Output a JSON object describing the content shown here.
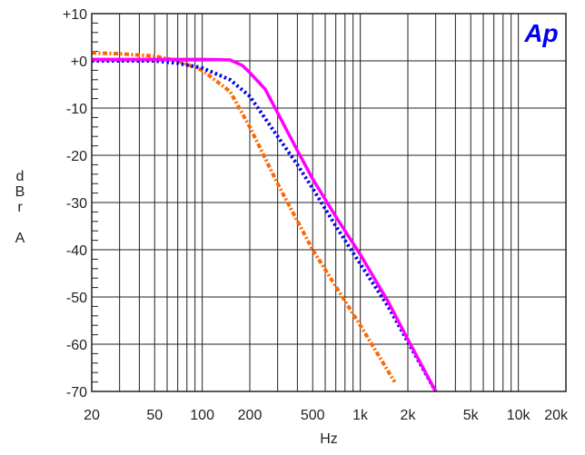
{
  "chart_data": {
    "type": "line",
    "title": "",
    "logo": "Ap",
    "xlabel": "Hz",
    "ylabel": [
      "d",
      "B",
      "r",
      "",
      "A"
    ],
    "xscale": "log",
    "xlim": [
      20,
      20000
    ],
    "ylim": [
      -70,
      10
    ],
    "grid": true,
    "x_ticks": [
      {
        "value": 20,
        "label": "20"
      },
      {
        "value": 50,
        "label": "50"
      },
      {
        "value": 100,
        "label": "100"
      },
      {
        "value": 200,
        "label": "200"
      },
      {
        "value": 500,
        "label": "500"
      },
      {
        "value": 1000,
        "label": "1k"
      },
      {
        "value": 2000,
        "label": "2k"
      },
      {
        "value": 5000,
        "label": "5k"
      },
      {
        "value": 10000,
        "label": "10k"
      },
      {
        "value": 20000,
        "label": "20k"
      }
    ],
    "y_ticks": [
      {
        "value": 10,
        "label": "+10"
      },
      {
        "value": 0,
        "label": "+0"
      },
      {
        "value": -10,
        "label": "-10"
      },
      {
        "value": -20,
        "label": "-20"
      },
      {
        "value": -30,
        "label": "-30"
      },
      {
        "value": -40,
        "label": "-40"
      },
      {
        "value": -50,
        "label": "-50"
      },
      {
        "value": -60,
        "label": "-60"
      },
      {
        "value": -70,
        "label": "-70"
      }
    ],
    "series": [
      {
        "name": "orange",
        "color": "#ff6600",
        "style": "dashdot",
        "x": [
          20,
          30,
          50,
          70,
          100,
          150,
          200,
          300,
          500,
          1000,
          1650
        ],
        "y": [
          1.7,
          1.5,
          1.0,
          0,
          -2,
          -6.5,
          -14,
          -26,
          -40,
          -56,
          -68
        ]
      },
      {
        "name": "blue",
        "color": "#0000ee",
        "style": "dotted",
        "x": [
          20,
          50,
          70,
          100,
          150,
          200,
          300,
          400,
          500,
          700,
          1000,
          1500,
          2000,
          3000
        ],
        "y": [
          0,
          0,
          -0.5,
          -1.5,
          -4,
          -7.5,
          -16,
          -22,
          -27,
          -35,
          -43,
          -52,
          -59.5,
          -70
        ]
      },
      {
        "name": "magenta",
        "color": "#ff00ff",
        "style": "solid",
        "x": [
          20,
          50,
          100,
          150,
          180,
          200,
          250,
          300,
          400,
          500,
          700,
          1000,
          1500,
          2000,
          3000
        ],
        "y": [
          0.3,
          0.3,
          0.3,
          0.2,
          -1,
          -2.5,
          -6,
          -11,
          -19,
          -25,
          -33,
          -41,
          -51,
          -59,
          -70
        ]
      }
    ]
  }
}
